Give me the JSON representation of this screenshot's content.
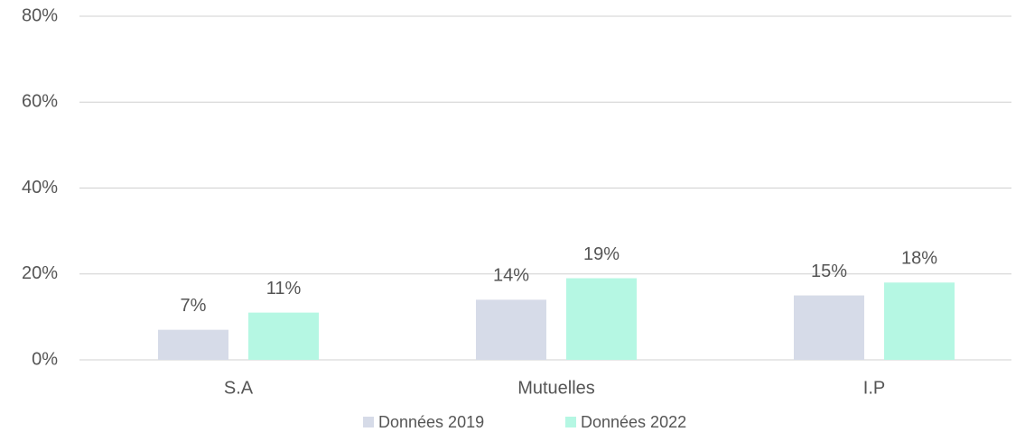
{
  "chart_data": {
    "type": "bar",
    "categories": [
      "S.A",
      "Mutuelles",
      "I.P"
    ],
    "series": [
      {
        "name": "Données 2019",
        "color": "#d6dbe8",
        "values": [
          7,
          14,
          15
        ],
        "value_labels": [
          "7%",
          "14%",
          "15%"
        ]
      },
      {
        "name": "Données 2022",
        "color": "#b5f7e3",
        "values": [
          11,
          19,
          18
        ],
        "value_labels": [
          "11%",
          "19%",
          "18%"
        ]
      }
    ],
    "ylim": [
      0,
      80
    ],
    "yticks": [
      {
        "value": 0,
        "label": "0%"
      },
      {
        "value": 20,
        "label": "20%"
      },
      {
        "value": 40,
        "label": "40%"
      },
      {
        "value": 60,
        "label": "60%"
      },
      {
        "value": 80,
        "label": "80%"
      }
    ],
    "grid": true,
    "legend": "bottom"
  }
}
